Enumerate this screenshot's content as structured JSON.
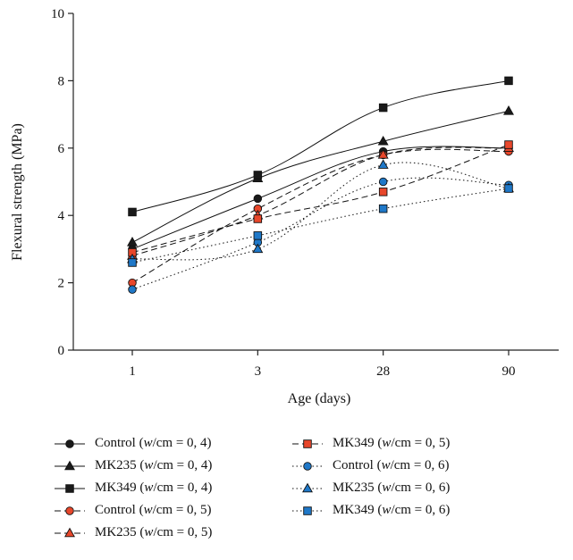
{
  "chart_data": {
    "type": "line",
    "title": "",
    "xlabel": "Age (days)",
    "ylabel": "Flexural strength (MPa)",
    "categories": [
      "1",
      "3",
      "28",
      "90"
    ],
    "ylim": [
      0,
      10
    ],
    "yticks": [
      "0",
      "2",
      "4",
      "6",
      "8",
      "10"
    ],
    "grid": false,
    "legend_position": "bottom",
    "series": [
      {
        "name": "Control (w/cm = 0, 4)",
        "label_main": "Control (",
        "label_italic": "w",
        "label_rest": "/cm = 0, 4)",
        "values": [
          3.0,
          4.5,
          5.9,
          6.0
        ],
        "dash": "solid",
        "marker": "circle",
        "fill": "#1a1a1a"
      },
      {
        "name": "MK235 (w/cm = 0, 4)",
        "label_main": "MK235 (",
        "label_italic": "w",
        "label_rest": "/cm = 0, 4)",
        "values": [
          3.2,
          5.1,
          6.2,
          7.1
        ],
        "dash": "solid",
        "marker": "triangle",
        "fill": "#1a1a1a"
      },
      {
        "name": "MK349 (w/cm = 0, 4)",
        "label_main": "MK349 (",
        "label_italic": "w",
        "label_rest": "/cm = 0, 4)",
        "values": [
          4.1,
          5.2,
          7.2,
          8.0
        ],
        "dash": "solid",
        "marker": "square",
        "fill": "#1a1a1a"
      },
      {
        "name": "Control (w/cm = 0, 5)",
        "label_main": "Control (",
        "label_italic": "w",
        "label_rest": "/cm = 0, 5)",
        "values": [
          2.0,
          4.2,
          5.8,
          5.9
        ],
        "dash": "dashed",
        "marker": "circle",
        "fill": "#e8472b"
      },
      {
        "name": "MK235 (w/cm = 0, 5)",
        "label_main": "MK235 (",
        "label_italic": "w",
        "label_rest": "/cm = 0, 5)",
        "values": [
          2.8,
          4.0,
          5.8,
          6.0
        ],
        "dash": "dashed",
        "marker": "triangle",
        "fill": "#e8472b"
      },
      {
        "name": "MK349 (w/cm = 0, 5)",
        "label_main": "MK349 (",
        "label_italic": "w",
        "label_rest": "/cm = 0, 5)",
        "values": [
          2.9,
          3.9,
          4.7,
          6.1
        ],
        "dash": "dashed",
        "marker": "square",
        "fill": "#e8472b"
      },
      {
        "name": "Control (w/cm = 0, 6)",
        "label_main": "Control (",
        "label_italic": "w",
        "label_rest": "/cm = 0, 6)",
        "values": [
          1.8,
          3.2,
          5.0,
          4.9
        ],
        "dash": "dotted",
        "marker": "circle",
        "fill": "#1f78c8"
      },
      {
        "name": "MK235 (w/cm = 0, 6)",
        "label_main": "MK235 (",
        "label_italic": "w",
        "label_rest": "/cm = 0, 6)",
        "values": [
          2.7,
          3.0,
          5.5,
          4.8
        ],
        "dash": "dotted",
        "marker": "triangle",
        "fill": "#1f78c8"
      },
      {
        "name": "MK349 (w/cm = 0, 6)",
        "label_main": "MK349 (",
        "label_italic": "w",
        "label_rest": "/cm = 0, 6)",
        "values": [
          2.6,
          3.4,
          4.2,
          4.8
        ],
        "dash": "dotted",
        "marker": "square",
        "fill": "#1f78c8"
      }
    ]
  }
}
